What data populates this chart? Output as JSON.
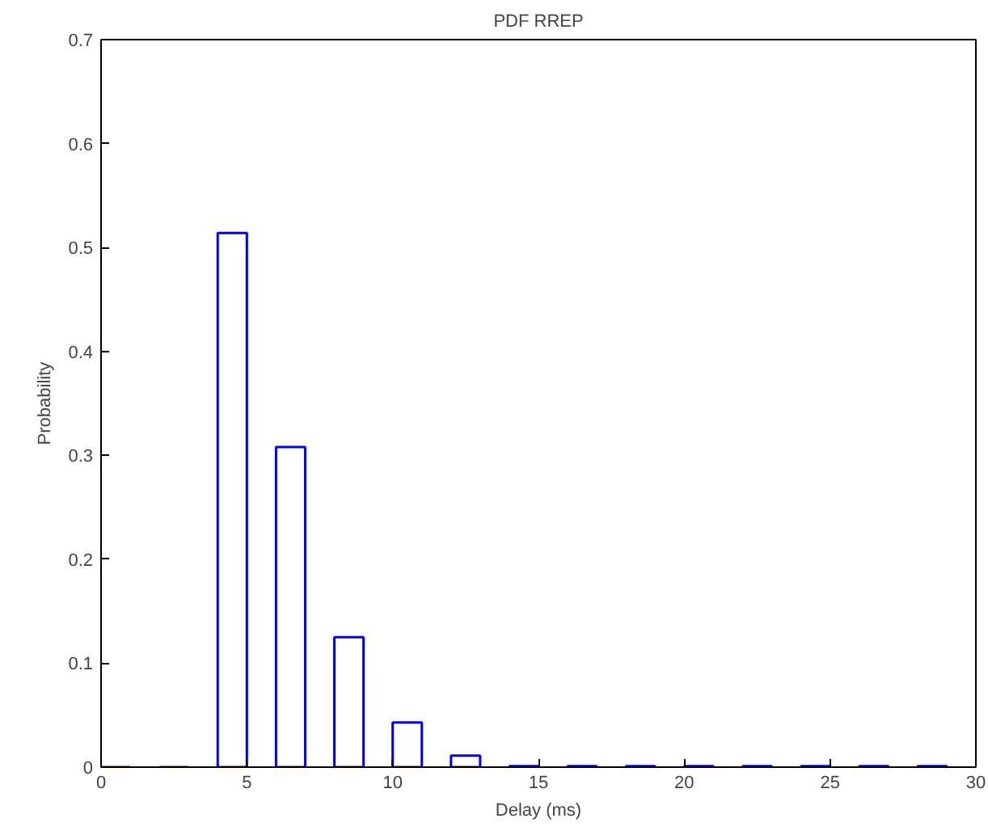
{
  "chart_data": {
    "type": "bar",
    "title": "PDF RREP",
    "xlabel": "Delay (ms)",
    "ylabel": "Probability",
    "x": [
      0.5,
      2.5,
      4.5,
      6.5,
      8.5,
      10.5,
      12.5,
      14.5,
      16.5,
      18.5,
      20.5,
      22.5,
      24.5,
      26.5,
      28.5
    ],
    "values": [
      0,
      0,
      0.514,
      0.308,
      0.125,
      0.043,
      0.011,
      0.001,
      0.001,
      0.001,
      0.001,
      0.001,
      0.001,
      0.001,
      0.001
    ],
    "color": "#0000ff",
    "xlim": [
      0,
      30
    ],
    "xticks": [
      0,
      5,
      10,
      15,
      20,
      25,
      30
    ],
    "ylim": [
      0,
      0.7
    ],
    "yticks": [
      0,
      0.1,
      0.2,
      0.3,
      0.4,
      0.5,
      0.6,
      0.7
    ],
    "grid": false
  }
}
